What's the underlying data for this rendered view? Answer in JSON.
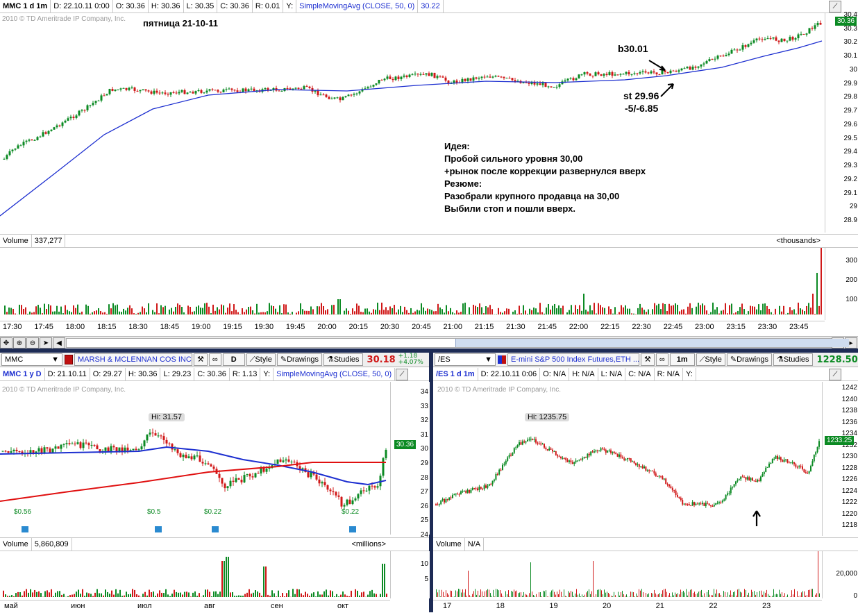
{
  "top_chart": {
    "header": {
      "symbol": "MMC 1 d 1m",
      "date": "D: 22.10.11 0:00",
      "open": "O: 30.36",
      "high": "H: 30.36",
      "low": "L: 30.35",
      "close": "C: 30.36",
      "range": "R: 0.01",
      "y_label": "Y:",
      "study": "SimpleMovingAvg (CLOSE, 50, 0)",
      "study_value": "30.22"
    },
    "copyright": "2010 © TD Ameritrade IP Company, Inc.",
    "day_title": "пятница 21-10-11",
    "last_price": "30.36",
    "annotations": {
      "buy": "b30.01",
      "stop": "st 29.96",
      "result": "-5/-6.85",
      "idea": "Идея:\nПробой сильного уровня 30,00\n+рынок после коррекции развернулся вверх\nРезюме:\nРазобрали крупного продавца на 30,00\nВыбили стоп и пошли вверх."
    },
    "y_ticks": [
      "30.4",
      "30.3",
      "30.2",
      "30.1",
      "30",
      "29.9",
      "29.8",
      "29.7",
      "29.6",
      "29.5",
      "29.4",
      "29.3",
      "29.2",
      "29.1",
      "29",
      "28.9"
    ],
    "volume": {
      "label": "Volume",
      "value": "337,277",
      "units": "<thousands>",
      "ticks": [
        "300",
        "200",
        "100"
      ]
    },
    "x_ticks": [
      "17:30",
      "17:45",
      "18:00",
      "18:15",
      "18:30",
      "18:45",
      "19:00",
      "19:15",
      "19:30",
      "19:45",
      "20:00",
      "20:15",
      "20:30",
      "20:45",
      "21:00",
      "21:15",
      "21:30",
      "21:45",
      "22:00",
      "22:15",
      "22:30",
      "22:45",
      "23:00",
      "23:15",
      "23:30",
      "23:45"
    ]
  },
  "left_chart": {
    "toolbar": {
      "symbol": "MMC",
      "company": "MARSH & MCLENNAN COS INC ...",
      "timeframe": "D",
      "style": "Style",
      "drawings": "Drawings",
      "studies": "Studies",
      "price": "30.18",
      "change_abs": "+1.18",
      "change_pct": "+4.07%"
    },
    "header": {
      "symbol": "MMC 1 y D",
      "date": "D: 21.10.11",
      "open": "O: 29.27",
      "high": "H: 30.36",
      "low": "L: 29.23",
      "close": "C: 30.36",
      "range": "R: 1.13",
      "y_label": "Y:",
      "study": "SimpleMovingAvg (CLOSE, 50, 0)"
    },
    "copyright": "2010 © TD Ameritrade IP Company, Inc.",
    "hi_label": "Hi: 31.57",
    "last_price": "30.36",
    "dividends": [
      "$0.56",
      "$0.22",
      "$0.5",
      "$0.22"
    ],
    "y_ticks": [
      "34",
      "33",
      "32",
      "31",
      "30",
      "29",
      "28",
      "27",
      "26",
      "25",
      "24"
    ],
    "volume": {
      "label": "Volume",
      "value": "5,860,809",
      "units": "<millions>",
      "ticks": [
        "10",
        "5"
      ]
    },
    "x_ticks": [
      "май",
      "июн",
      "июл",
      "авг",
      "сен",
      "окт"
    ]
  },
  "right_chart": {
    "toolbar": {
      "symbol": "/ES",
      "description": "E-mini S&P 500 Index Futures,ETH ...",
      "timeframe": "1m",
      "style": "Style",
      "drawings": "Drawings",
      "studies": "Studies",
      "price": "1228.50"
    },
    "header": {
      "symbol": "/ES 1 d 1m",
      "date": "D: 22.10.11 0:06",
      "open": "O: N/A",
      "high": "H: N/A",
      "low": "L: N/A",
      "close": "C: N/A",
      "range": "R: N/A",
      "y_label": "Y:"
    },
    "copyright": "2010 © TD Ameritrade IP Company, Inc.",
    "hi_label": "Hi: 1235.75",
    "last_price": "1233.25",
    "y_ticks": [
      "1242",
      "1240",
      "1238",
      "1236",
      "1234",
      "1232",
      "1230",
      "1228",
      "1226",
      "1224",
      "1222",
      "1220",
      "1218"
    ],
    "volume": {
      "label": "Volume",
      "value": "N/A",
      "ticks": [
        "20,000",
        "0"
      ]
    },
    "x_ticks": [
      "17",
      "18",
      "19",
      "20",
      "21",
      "22",
      "23"
    ]
  },
  "colors": {
    "up": "#0b8a23",
    "down": "#d01818",
    "sma": "#1d2fd0",
    "sma_long": "#e01010",
    "accent": "#1d2b55"
  }
}
